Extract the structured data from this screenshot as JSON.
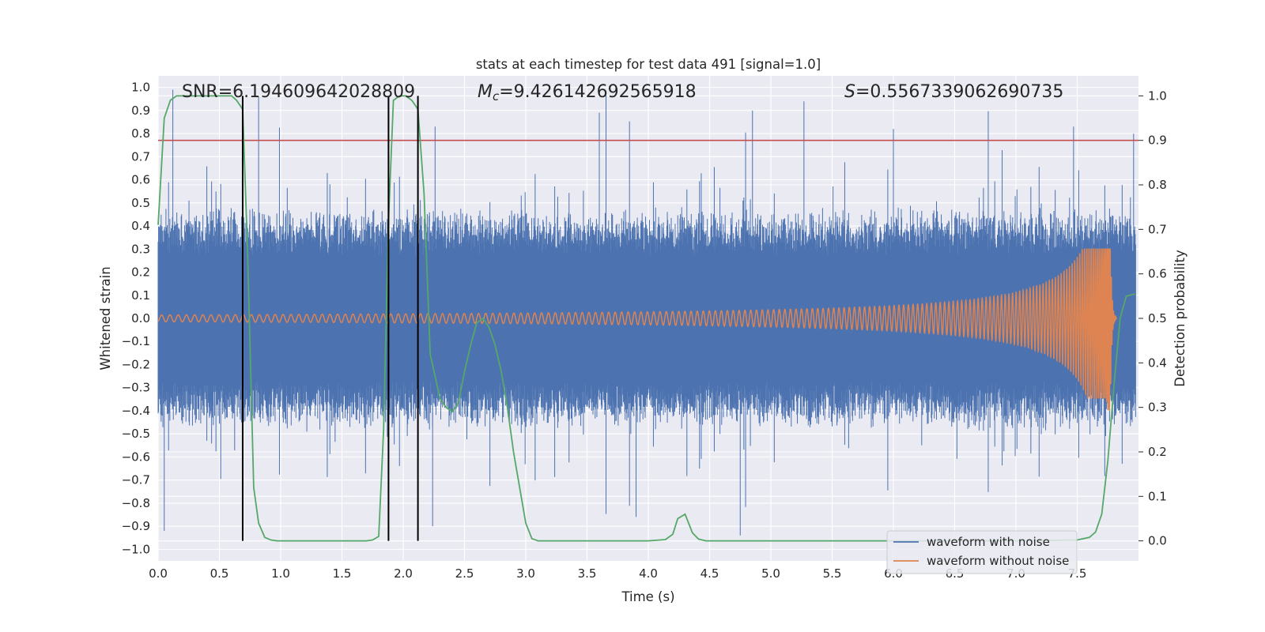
{
  "chart_data": {
    "type": "line",
    "title": "stats at each timestep for test data 491 [signal=1.0]",
    "xlabel": "Time (s)",
    "ylabel": "Whitened strain",
    "ylabel_right": "Detection probability",
    "xlim": [
      0.0,
      8.0
    ],
    "ylim": [
      -1.05,
      1.05
    ],
    "ylim_right": [
      -0.045,
      1.045
    ],
    "x_ticks": [
      "0.0",
      "0.5",
      "1.0",
      "1.5",
      "2.0",
      "2.5",
      "3.0",
      "3.5",
      "4.0",
      "4.5",
      "5.0",
      "5.5",
      "6.0",
      "6.5",
      "7.0",
      "7.5"
    ],
    "y_ticks": [
      "1.0",
      "0.9",
      "0.8",
      "0.7",
      "0.6",
      "0.5",
      "0.4",
      "0.3",
      "0.2",
      "0.1",
      "0.0",
      "−0.1",
      "−0.2",
      "−0.3",
      "−0.4",
      "−0.5",
      "−0.6",
      "−0.7",
      "−0.8",
      "−0.9",
      "−1.0"
    ],
    "y_ticks_right": [
      "1.0",
      "0.9",
      "0.8",
      "0.7",
      "0.6",
      "0.5",
      "0.4",
      "0.3",
      "0.2",
      "0.1",
      "0.0"
    ],
    "annotations": {
      "snr": "SNR=6.194609642028809",
      "mc_symbol": "M",
      "mc_sub": "c",
      "mc_value": "=9.426142692565918",
      "s_symbol": "S",
      "s_value": "=0.5567339062690735"
    },
    "threshold_right": 0.9,
    "vertical_lines_x": [
      0.69,
      1.88,
      2.12
    ],
    "legend": {
      "placement": "lower-right",
      "entries": [
        "waveform with noise",
        "waveform without noise"
      ]
    },
    "colors": {
      "noise": "#4c72b0",
      "clean": "#dd8452",
      "probability": "#55a868",
      "threshold": "#c44e52",
      "background": "#eaeaf2",
      "grid": "#ffffff",
      "vlines": "#000000"
    },
    "series": [
      {
        "name": "waveform with noise",
        "axis": "left",
        "noise_band": {
          "x_range": [
            0.0,
            7.98
          ],
          "core_amplitude": 0.36,
          "max_positive": 0.99,
          "max_negative": -0.93
        }
      },
      {
        "name": "waveform without noise",
        "axis": "left",
        "chirp": {
          "merger_time": 7.77,
          "peak_amplitude": 0.3,
          "min_amplitude": -0.4,
          "start_amplitude": 0.015
        }
      },
      {
        "axis": "right",
        "x": [
          0.0,
          0.05,
          0.1,
          0.15,
          0.2,
          0.3,
          0.4,
          0.5,
          0.6,
          0.64,
          0.69,
          0.73,
          0.78,
          0.82,
          0.87,
          0.92,
          0.97,
          1.0,
          1.2,
          1.5,
          1.7,
          1.75,
          1.8,
          1.84,
          1.88,
          1.92,
          1.97,
          2.02,
          2.07,
          2.12,
          2.17,
          2.22,
          2.3,
          2.35,
          2.4,
          2.45,
          2.5,
          2.55,
          2.6,
          2.65,
          2.7,
          2.75,
          2.8,
          2.85,
          2.9,
          2.95,
          3.0,
          3.05,
          3.1,
          3.5,
          4.0,
          4.14,
          4.2,
          4.24,
          4.3,
          4.36,
          4.41,
          4.47,
          4.52,
          4.6,
          5.0,
          6.0,
          7.0,
          7.5,
          7.6,
          7.65,
          7.7,
          7.75,
          7.8,
          7.85,
          7.9,
          7.97
        ],
        "y": [
          0.71,
          0.95,
          0.99,
          1.0,
          1.0,
          1.0,
          1.0,
          1.0,
          1.0,
          0.99,
          0.97,
          0.65,
          0.12,
          0.04,
          0.008,
          0.002,
          0.0,
          0.0,
          0.0,
          0.0,
          0.0,
          0.002,
          0.01,
          0.25,
          0.72,
          0.99,
          1.0,
          1.0,
          0.99,
          0.97,
          0.78,
          0.42,
          0.32,
          0.3,
          0.29,
          0.31,
          0.38,
          0.44,
          0.49,
          0.5,
          0.48,
          0.44,
          0.38,
          0.3,
          0.2,
          0.12,
          0.04,
          0.005,
          0.0,
          0.0,
          0.0,
          0.003,
          0.015,
          0.05,
          0.06,
          0.018,
          0.004,
          0.0,
          0.0,
          0.0,
          0.0,
          0.0,
          0.0,
          0.002,
          0.008,
          0.02,
          0.06,
          0.18,
          0.35,
          0.5,
          0.55,
          0.555
        ]
      }
    ]
  }
}
